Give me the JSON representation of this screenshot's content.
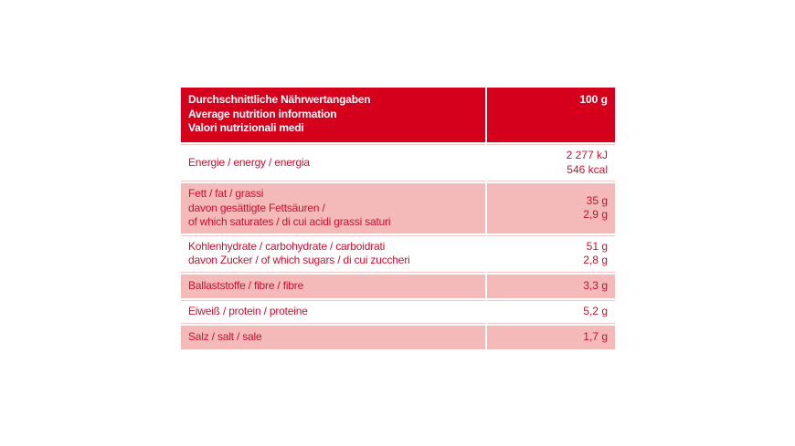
{
  "header": {
    "lines": [
      "Durchschnittliche Nährwertangaben",
      "Average nutrition information",
      "Valori nutrizionali medi"
    ],
    "value": "100 g"
  },
  "rows": [
    {
      "labels": [
        "Energie / energy / energia"
      ],
      "values": [
        "2 277 kJ",
        "546 kcal"
      ]
    },
    {
      "labels": [
        "Fett / fat / grassi",
        "davon gesättigte Fettsäuren /",
        "of which saturates / di cui acidi grassi saturi"
      ],
      "values": [
        "35 g",
        "2,9 g"
      ]
    },
    {
      "labels": [
        "Kohlenhydrate / carbohydrate / carboidrati",
        "davon Zucker / of which sugars / di cui zuccheri"
      ],
      "values": [
        "51 g",
        "2,8 g"
      ]
    },
    {
      "labels": [
        "Ballaststoffe / fibre / fibre"
      ],
      "values": [
        "3,3 g"
      ]
    },
    {
      "labels": [
        "Eiweiß / protein / proteine"
      ],
      "values": [
        "5,2 g"
      ]
    },
    {
      "labels": [
        "Salz / salt / sale"
      ],
      "values": [
        "1,7 g"
      ]
    }
  ]
}
